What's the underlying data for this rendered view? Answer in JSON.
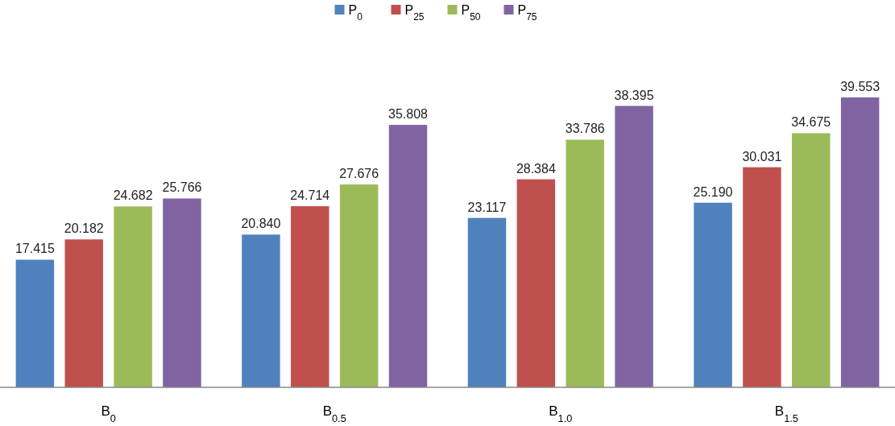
{
  "chart_data": {
    "type": "bar",
    "categories": [
      "B$_{0}$",
      "B$_{0.5}$",
      "B$_{1.0}$",
      "B$_{1.5}$"
    ],
    "series": [
      {
        "name": "P$_{0}$",
        "color": "#4f81bd",
        "values": [
          17.415,
          20.84,
          23.117,
          25.19
        ],
        "value_labels": [
          "17.415",
          "20.840",
          "23.117",
          "25.190"
        ]
      },
      {
        "name": "P$_{25}$",
        "color": "#c0504d",
        "values": [
          20.182,
          24.714,
          28.384,
          30.031
        ],
        "value_labels": [
          "20.182",
          "24.714",
          "28.384",
          "30.031"
        ]
      },
      {
        "name": "P$_{50}$",
        "color": "#9bbb59",
        "values": [
          24.682,
          27.676,
          33.786,
          34.675
        ],
        "value_labels": [
          "24.682",
          "27.676",
          "33.786",
          "34.675"
        ]
      },
      {
        "name": "P$_{75}$",
        "color": "#8064a2",
        "values": [
          25.766,
          35.808,
          38.395,
          39.553
        ],
        "value_labels": [
          "25.766",
          "35.808",
          "38.395",
          "39.553"
        ]
      }
    ],
    "legend": "top",
    "tick_labels": "x"
  }
}
